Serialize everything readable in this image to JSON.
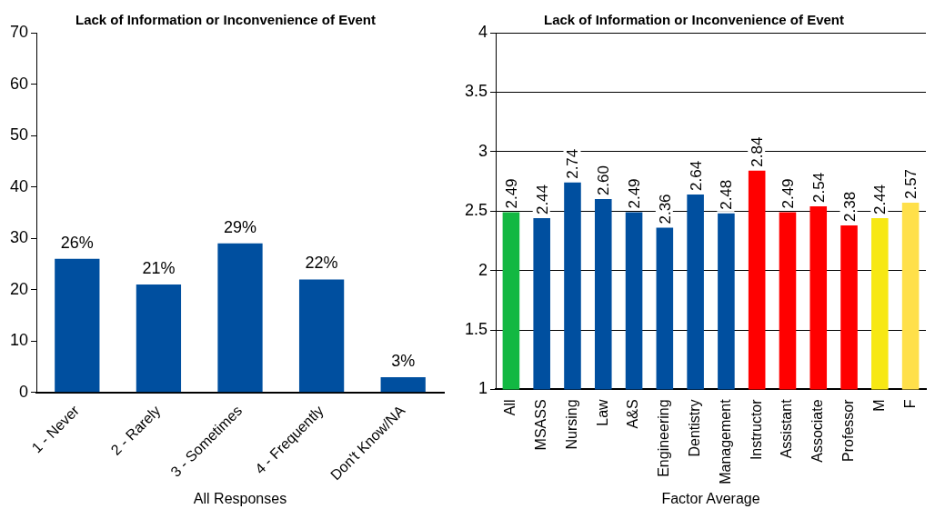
{
  "chart_data": [
    {
      "type": "bar",
      "title": "Lack of Information or Inconvenience of Event",
      "xlabel": "All Responses",
      "categories": [
        "1 - Never",
        "2 - Rarely",
        "3 - Sometimes",
        "4 - Frequently",
        "Don't Know/NA"
      ],
      "values": [
        26,
        21,
        29,
        22,
        3
      ],
      "value_labels": [
        "26%",
        "21%",
        "29%",
        "22%",
        "3%"
      ],
      "color": "#004f9f",
      "ylim": [
        0,
        70
      ],
      "yticks": [
        0,
        10,
        20,
        30,
        40,
        50,
        60,
        70
      ],
      "grid": false,
      "legend": false
    },
    {
      "type": "bar",
      "title": "Lack of Information or Inconvenience of Event",
      "xlabel": "Factor Average",
      "categories": [
        "All",
        "MSASS",
        "Nursing",
        "Law",
        "A&S",
        "Engineering",
        "Dentistry",
        "Management",
        "Instructor",
        "Assistant",
        "Associate",
        "Professor",
        "M",
        "F"
      ],
      "values": [
        2.49,
        2.44,
        2.74,
        2.6,
        2.49,
        2.36,
        2.64,
        2.48,
        2.84,
        2.49,
        2.54,
        2.38,
        2.44,
        2.57
      ],
      "colors": [
        "#12b842",
        "#004f9f",
        "#004f9f",
        "#004f9f",
        "#004f9f",
        "#004f9f",
        "#004f9f",
        "#004f9f",
        "#ff0000",
        "#ff0000",
        "#ff0000",
        "#ff0000",
        "#f7e814",
        "#ffe04a"
      ],
      "value_labels": [
        "2.49",
        "2.44",
        "2.74",
        "2.60",
        "2.49",
        "2.36",
        "2.64",
        "2.48",
        "2.84",
        "2.49",
        "2.54",
        "2.38",
        "2.44",
        "2.57"
      ],
      "ylim": [
        1,
        4
      ],
      "yticks": [
        1,
        1.5,
        2,
        2.5,
        3,
        3.5,
        4
      ],
      "grid": "y",
      "legend": false
    }
  ]
}
